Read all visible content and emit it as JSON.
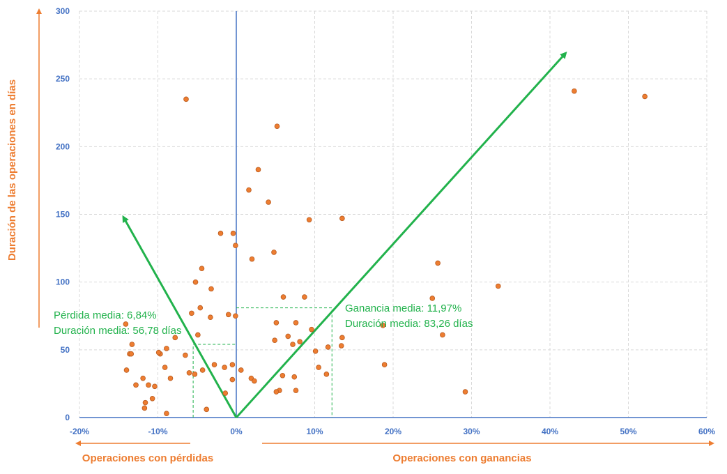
{
  "chart_data": {
    "type": "scatter",
    "x_ticks": [
      "-20%",
      "-10%",
      "0%",
      "10%",
      "20%",
      "30%",
      "40%",
      "50%",
      "60%"
    ],
    "y_ticks": [
      "0",
      "50",
      "100",
      "150",
      "200",
      "250",
      "300"
    ],
    "xlim": [
      -20,
      60
    ],
    "ylim": [
      0,
      300
    ],
    "grid": true,
    "ylabel": "Duración de las operaciones en días",
    "xlabel_left": "Operaciones con pérdidas",
    "xlabel_right": "Operaciones con ganancias",
    "annotations": {
      "loss_mean": "Pérdida media: 6,84%",
      "loss_duration": "Duración media: 56,78 días",
      "gain_mean": "Ganancia media: 11,97%",
      "gain_duration": "Duración media: 83,26 días"
    },
    "mean_markers": {
      "loss": {
        "x": -5.5,
        "y": 54
      },
      "gain": {
        "x": 12.2,
        "y": 81
      }
    },
    "trend_arrows": [
      {
        "name": "loss",
        "from": [
          0,
          0
        ],
        "to": [
          -14.4,
          148
        ]
      },
      {
        "name": "gain",
        "from": [
          0,
          0
        ],
        "to": [
          42.0,
          269
        ]
      }
    ],
    "colors": {
      "points": "#ed7d31",
      "axis": "#4472c4",
      "arrow": "#22b24c",
      "grid": "#d9d9d9"
    },
    "points": [
      {
        "x": -6.4,
        "y": 235
      },
      {
        "x": -2.0,
        "y": 136
      },
      {
        "x": -0.4,
        "y": 136
      },
      {
        "x": -0.1,
        "y": 127
      },
      {
        "x": -4.4,
        "y": 110
      },
      {
        "x": -5.2,
        "y": 100
      },
      {
        "x": -3.2,
        "y": 95
      },
      {
        "x": -5.7,
        "y": 77
      },
      {
        "x": -4.6,
        "y": 81
      },
      {
        "x": -3.3,
        "y": 74
      },
      {
        "x": -1.0,
        "y": 76
      },
      {
        "x": -0.1,
        "y": 75
      },
      {
        "x": -14.1,
        "y": 69
      },
      {
        "x": -4.9,
        "y": 61
      },
      {
        "x": -7.8,
        "y": 59
      },
      {
        "x": -13.3,
        "y": 54
      },
      {
        "x": -13.6,
        "y": 47
      },
      {
        "x": -13.4,
        "y": 47
      },
      {
        "x": -9.7,
        "y": 47
      },
      {
        "x": -9.9,
        "y": 48
      },
      {
        "x": -8.9,
        "y": 51
      },
      {
        "x": -6.5,
        "y": 46
      },
      {
        "x": -14.0,
        "y": 35
      },
      {
        "x": -9.1,
        "y": 37
      },
      {
        "x": -2.8,
        "y": 39
      },
      {
        "x": -1.5,
        "y": 37
      },
      {
        "x": -0.5,
        "y": 39
      },
      {
        "x": 0.6,
        "y": 35
      },
      {
        "x": -4.3,
        "y": 35
      },
      {
        "x": -6.0,
        "y": 33
      },
      {
        "x": -5.3,
        "y": 32
      },
      {
        "x": -11.9,
        "y": 29
      },
      {
        "x": -8.4,
        "y": 29
      },
      {
        "x": -0.5,
        "y": 28
      },
      {
        "x": 1.9,
        "y": 29
      },
      {
        "x": 2.3,
        "y": 27
      },
      {
        "x": -11.2,
        "y": 24
      },
      {
        "x": -10.4,
        "y": 23
      },
      {
        "x": -12.8,
        "y": 24
      },
      {
        "x": -10.7,
        "y": 14
      },
      {
        "x": -11.6,
        "y": 11
      },
      {
        "x": -11.7,
        "y": 7
      },
      {
        "x": -1.4,
        "y": 18
      },
      {
        "x": -3.8,
        "y": 6
      },
      {
        "x": -8.9,
        "y": 3
      },
      {
        "x": 5.2,
        "y": 215
      },
      {
        "x": 2.8,
        "y": 183
      },
      {
        "x": 1.6,
        "y": 168
      },
      {
        "x": 4.1,
        "y": 159
      },
      {
        "x": 9.3,
        "y": 146
      },
      {
        "x": 13.5,
        "y": 147
      },
      {
        "x": 4.8,
        "y": 122
      },
      {
        "x": 2.0,
        "y": 117
      },
      {
        "x": 6.0,
        "y": 89
      },
      {
        "x": 8.7,
        "y": 89
      },
      {
        "x": 5.1,
        "y": 70
      },
      {
        "x": 7.6,
        "y": 70
      },
      {
        "x": 9.6,
        "y": 65
      },
      {
        "x": 6.6,
        "y": 60
      },
      {
        "x": 4.9,
        "y": 57
      },
      {
        "x": 7.2,
        "y": 54
      },
      {
        "x": 8.1,
        "y": 56
      },
      {
        "x": 13.5,
        "y": 59
      },
      {
        "x": 13.4,
        "y": 53
      },
      {
        "x": 11.7,
        "y": 52
      },
      {
        "x": 10.1,
        "y": 49
      },
      {
        "x": 10.5,
        "y": 37
      },
      {
        "x": 5.9,
        "y": 31
      },
      {
        "x": 7.4,
        "y": 30
      },
      {
        "x": 11.5,
        "y": 32
      },
      {
        "x": 5.5,
        "y": 20
      },
      {
        "x": 5.1,
        "y": 19
      },
      {
        "x": 7.6,
        "y": 20
      },
      {
        "x": 18.7,
        "y": 68
      },
      {
        "x": 18.9,
        "y": 39
      },
      {
        "x": 25.0,
        "y": 88
      },
      {
        "x": 25.7,
        "y": 114
      },
      {
        "x": 26.3,
        "y": 61
      },
      {
        "x": 29.2,
        "y": 19
      },
      {
        "x": 33.4,
        "y": 97
      },
      {
        "x": 43.1,
        "y": 241
      },
      {
        "x": 52.1,
        "y": 237
      }
    ]
  }
}
